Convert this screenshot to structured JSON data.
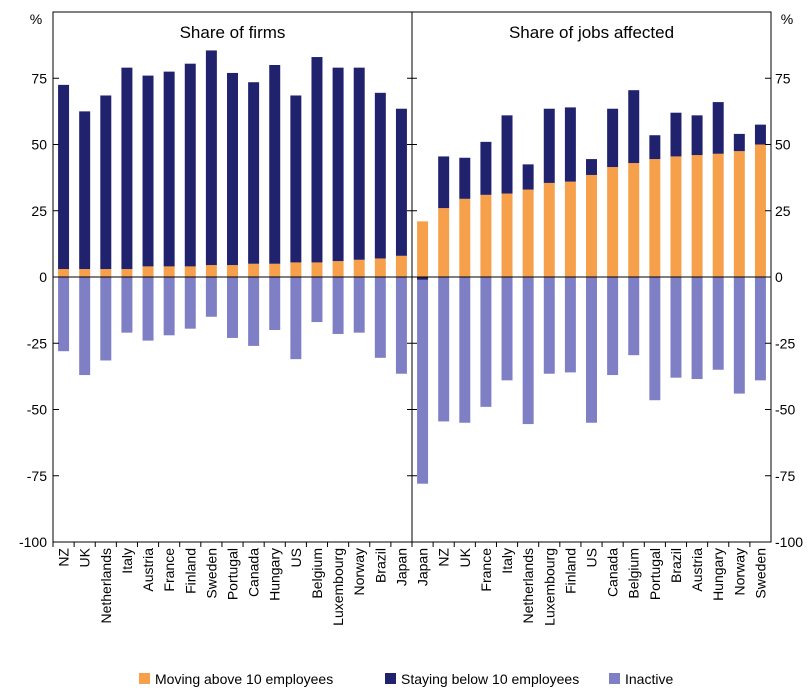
{
  "chart_data": {
    "type": "bar",
    "stacked": true,
    "y_unit": "%",
    "ylim": [
      -100,
      100
    ],
    "yticks": [
      -100,
      -75,
      -50,
      -25,
      0,
      25,
      50,
      75
    ],
    "legend_position": "bottom",
    "series_meta": [
      {
        "key": "moving",
        "name": "Moving above 10 employees",
        "color": "#f7a04b"
      },
      {
        "key": "staying",
        "name": "Staying below 10 employees",
        "color": "#21226e"
      },
      {
        "key": "inactive",
        "name": "Inactive",
        "color": "#7f7fc6"
      }
    ],
    "panels": [
      {
        "title": "Share of firms",
        "categories": [
          "NZ",
          "UK",
          "Netherlands",
          "Italy",
          "Austria",
          "France",
          "Finland",
          "Sweden",
          "Portugal",
          "Canada",
          "Hungary",
          "US",
          "Belgium",
          "Luxembourg",
          "Norway",
          "Brazil",
          "Japan"
        ],
        "series": {
          "moving": [
            3,
            3,
            3,
            3,
            4,
            4,
            4,
            4.5,
            4.5,
            5,
            5,
            5.5,
            5.5,
            6,
            6.5,
            7,
            8
          ],
          "staying": [
            69.5,
            59.5,
            65.5,
            76,
            72,
            73.5,
            76.5,
            81,
            72.5,
            68.5,
            75,
            63,
            77.5,
            73,
            72.5,
            62.5,
            55.5
          ],
          "inactive": [
            -28,
            -37,
            -31.5,
            -21,
            -24,
            -22,
            -19.5,
            -15,
            -23,
            -26,
            -20,
            -31,
            -17,
            -21.5,
            -21,
            -30.5,
            -36.5
          ]
        }
      },
      {
        "title": "Share of jobs affected",
        "categories": [
          "Japan",
          "NZ",
          "UK",
          "France",
          "Italy",
          "Netherlands",
          "Luxembourg",
          "Finland",
          "US",
          "Canada",
          "Belgium",
          "Portugal",
          "Brazil",
          "Austria",
          "Hungary",
          "Norway",
          "Sweden"
        ],
        "series": {
          "moving": [
            21,
            26,
            29.5,
            31,
            31.5,
            33,
            35.5,
            36,
            38.5,
            41.5,
            43,
            44.5,
            45.5,
            46,
            46.5,
            47.5,
            50
          ],
          "staying": [
            -1,
            19.5,
            15.5,
            20,
            29.5,
            9.5,
            28,
            28,
            6,
            22,
            27.5,
            9,
            16.5,
            15,
            19.5,
            6.5,
            7.5
          ],
          "inactive": [
            -78,
            -54.5,
            -55,
            -49,
            -39,
            -55.5,
            -36.5,
            -36,
            -55,
            -37,
            -29.5,
            -46.5,
            -38,
            -38.5,
            -35,
            -44,
            -39
          ]
        }
      }
    ]
  }
}
